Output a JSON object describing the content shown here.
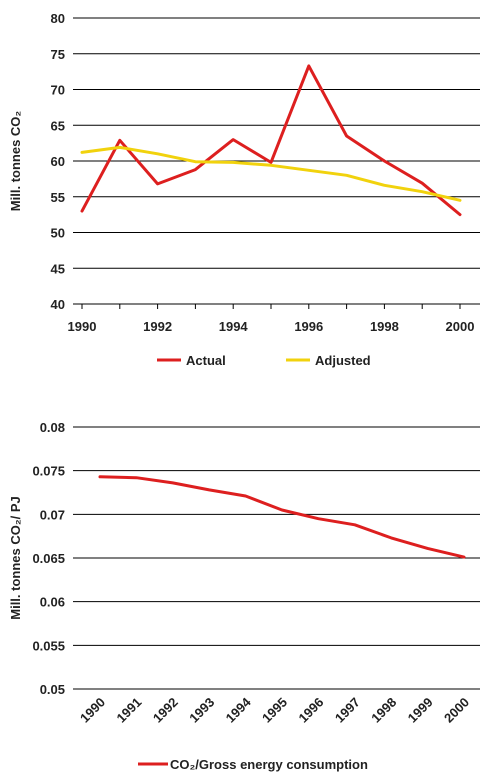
{
  "chart_data": [
    {
      "type": "line",
      "xlabel": "",
      "ylabel": "Mill. tonnes CO₂",
      "ylim": [
        40,
        80
      ],
      "yticks": [
        40,
        45,
        50,
        55,
        60,
        65,
        70,
        75,
        80
      ],
      "x": [
        1990,
        1991,
        1992,
        1993,
        1994,
        1995,
        1996,
        1997,
        1998,
        1999,
        2000
      ],
      "xtick_labels": [
        "1990",
        "1992",
        "1994",
        "1996",
        "1998",
        "2000"
      ],
      "grid": true,
      "legend": "bottom",
      "series": [
        {
          "name": "Actual",
          "color": "#dd1f1f",
          "values": [
            53.0,
            62.9,
            56.8,
            58.8,
            63.0,
            59.8,
            73.3,
            63.5,
            60.0,
            56.9,
            52.5
          ]
        },
        {
          "name": "Adjusted",
          "color": "#f1d20d",
          "values": [
            61.2,
            61.9,
            61.0,
            59.9,
            59.8,
            59.4,
            58.7,
            58.0,
            56.6,
            55.7,
            54.5
          ]
        }
      ]
    },
    {
      "type": "line",
      "xlabel": "",
      "ylabel": "Mill. tonnes CO₂/ PJ",
      "ylim": [
        0.05,
        0.08
      ],
      "yticks": [
        "0.05",
        "0.055",
        "0.06",
        "0.065",
        "0.07",
        "0.075",
        "0.08"
      ],
      "x": [
        1990,
        1991,
        1992,
        1993,
        1994,
        1995,
        1996,
        1997,
        1998,
        1999,
        2000
      ],
      "xtick_labels": [
        "1990",
        "1991",
        "1992",
        "1993",
        "1994",
        "1995",
        "1996",
        "1997",
        "1998",
        "1999",
        "2000"
      ],
      "grid": true,
      "legend": "bottom",
      "series": [
        {
          "name": "CO₂/Gross energy consumption",
          "color": "#dd1f1f",
          "values": [
            0.0743,
            0.0742,
            0.0736,
            0.0728,
            0.0721,
            0.0705,
            0.0695,
            0.0688,
            0.0673,
            0.0661,
            0.0651
          ]
        }
      ]
    }
  ]
}
